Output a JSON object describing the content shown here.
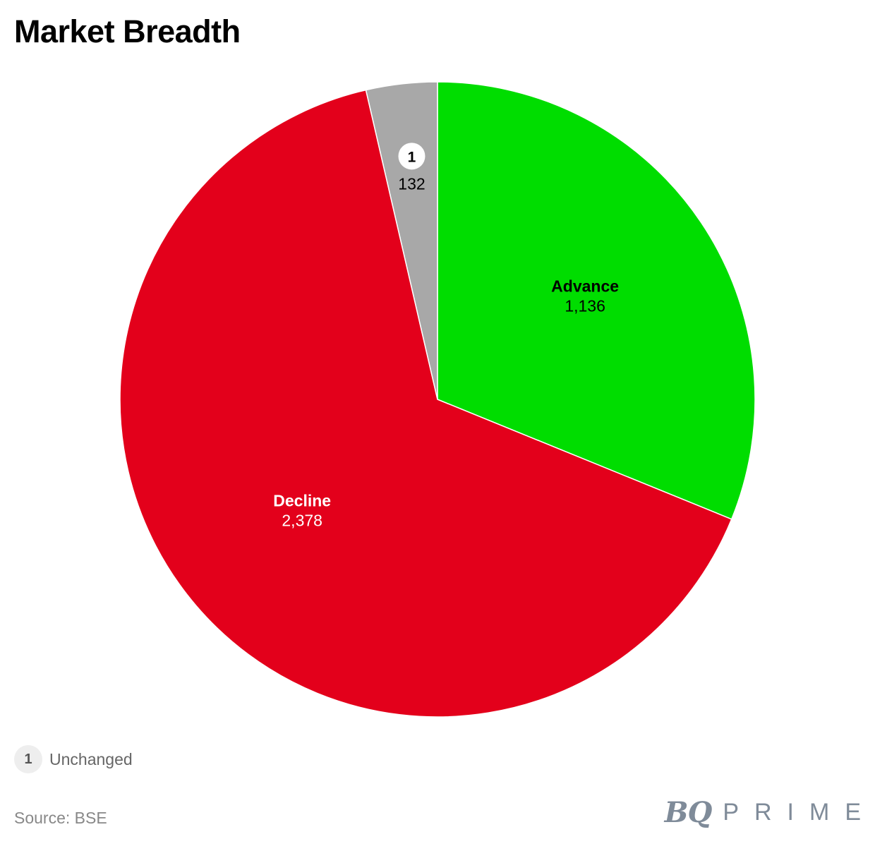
{
  "title": "Market Breadth",
  "chart_data": {
    "type": "pie",
    "title": "Market Breadth",
    "slices": [
      {
        "label": "Advance",
        "value": 1136,
        "display": "1,136",
        "color": "#00dd00",
        "label_color": "#000000"
      },
      {
        "label": "Decline",
        "value": 2378,
        "display": "2,378",
        "color": "#e3001b",
        "label_color": "#ffffff"
      },
      {
        "label": "Unchanged",
        "value": 132,
        "display": "132",
        "color": "#a8a8a8",
        "label_color": "#000000",
        "marker": "1"
      }
    ],
    "start_angle": "12 o'clock",
    "direction": "clockwise",
    "legend": "bottom-left"
  },
  "legend": {
    "marker": "1",
    "label": "Unchanged"
  },
  "source": "Source: BSE",
  "logo": {
    "bq": "BQ",
    "prime": "PRIME"
  }
}
